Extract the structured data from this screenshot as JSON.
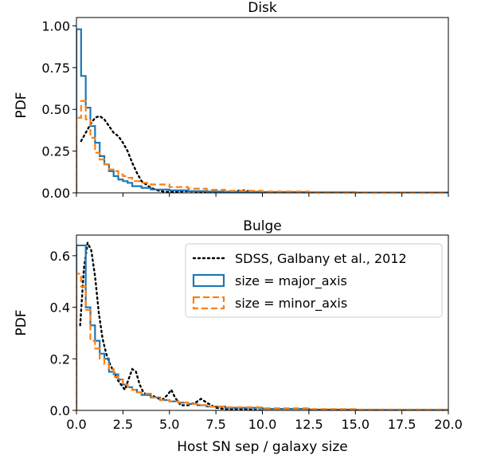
{
  "chart_data": [
    {
      "type": "line",
      "title": "Disk",
      "xlabel": "",
      "ylabel": "PDF",
      "xlim": [
        0,
        20
      ],
      "ylim": [
        0,
        1.05
      ],
      "xticks": [
        0,
        2.5,
        5,
        7.5,
        10,
        12.5,
        15,
        17.5,
        20
      ],
      "xtick_labels": [],
      "yticks": [
        0,
        0.25,
        0.5,
        0.75,
        1.0
      ],
      "ytick_labels": [
        "0.00",
        "0.25",
        "0.50",
        "0.75",
        "1.00"
      ],
      "series": [
        {
          "name": "SDSS, Galbany et al., 2012",
          "style": "dotted",
          "color": "#000000",
          "x": [
            0.25,
            0.5,
            0.75,
            1.0,
            1.25,
            1.5,
            1.75,
            2.0,
            2.25,
            2.5,
            2.75,
            3.0,
            3.25,
            3.5,
            4.0,
            4.5,
            5.0,
            6.0,
            7.0,
            8.0,
            9.0,
            9.5,
            10.0
          ],
          "y": [
            0.31,
            0.36,
            0.41,
            0.45,
            0.46,
            0.44,
            0.4,
            0.36,
            0.34,
            0.3,
            0.25,
            0.18,
            0.12,
            0.07,
            0.03,
            0.01,
            0.005,
            0.01,
            0.005,
            0.005,
            0.015,
            0.005,
            0.0
          ]
        },
        {
          "name": "size = major_axis",
          "style": "step-solid",
          "color": "#1f77b4",
          "edges": [
            0,
            0.25,
            0.5,
            0.75,
            1.0,
            1.25,
            1.5,
            1.75,
            2.0,
            2.25,
            2.5,
            2.75,
            3.0,
            3.5,
            4.0,
            5.0,
            6.0,
            7.0,
            8.0,
            10.0,
            12.5,
            15.0,
            20.0
          ],
          "values": [
            0.98,
            0.7,
            0.51,
            0.4,
            0.3,
            0.22,
            0.17,
            0.13,
            0.1,
            0.08,
            0.07,
            0.06,
            0.04,
            0.03,
            0.02,
            0.015,
            0.01,
            0.008,
            0.006,
            0.004,
            0.003,
            0.002
          ]
        },
        {
          "name": "size = minor_axis",
          "style": "step-dashed",
          "color": "#ff7f0e",
          "edges": [
            0,
            0.25,
            0.5,
            0.75,
            1.0,
            1.25,
            1.5,
            1.75,
            2.0,
            2.25,
            2.5,
            2.75,
            3.0,
            3.5,
            4.0,
            5.0,
            6.0,
            7.0,
            8.0,
            10.0,
            12.5,
            15.0,
            20.0
          ],
          "values": [
            0.45,
            0.55,
            0.44,
            0.33,
            0.24,
            0.2,
            0.17,
            0.14,
            0.13,
            0.11,
            0.1,
            0.09,
            0.07,
            0.06,
            0.05,
            0.035,
            0.025,
            0.018,
            0.012,
            0.008,
            0.005,
            0.003
          ]
        }
      ]
    },
    {
      "type": "line",
      "title": "Bulge",
      "xlabel": "Host SN sep / galaxy size",
      "ylabel": "PDF",
      "xlim": [
        0,
        20
      ],
      "ylim": [
        0,
        0.68
      ],
      "xticks": [
        0,
        2.5,
        5,
        7.5,
        10,
        12.5,
        15,
        17.5,
        20
      ],
      "xtick_labels": [
        "0.0",
        "2.5",
        "5.0",
        "7.5",
        "10.0",
        "12.5",
        "15.0",
        "17.5",
        "20.0"
      ],
      "yticks": [
        0,
        0.2,
        0.4,
        0.6
      ],
      "ytick_labels": [
        "0.0",
        "0.2",
        "0.4",
        "0.6"
      ],
      "legend": "top-right",
      "series": [
        {
          "name": "SDSS, Galbany et al., 2012",
          "style": "dotted",
          "color": "#000000",
          "x": [
            0.2,
            0.4,
            0.6,
            0.8,
            1.0,
            1.2,
            1.4,
            1.6,
            1.8,
            2.0,
            2.2,
            2.4,
            2.6,
            2.8,
            3.0,
            3.2,
            3.4,
            3.6,
            3.8,
            4.0,
            4.3,
            4.6,
            4.9,
            5.1,
            5.3,
            5.6,
            6.0,
            6.4,
            6.7,
            7.0,
            7.5,
            8.0,
            9.0,
            10.0
          ],
          "y": [
            0.33,
            0.55,
            0.65,
            0.62,
            0.52,
            0.38,
            0.28,
            0.22,
            0.18,
            0.15,
            0.12,
            0.1,
            0.08,
            0.12,
            0.16,
            0.15,
            0.1,
            0.07,
            0.06,
            0.06,
            0.05,
            0.04,
            0.06,
            0.08,
            0.05,
            0.02,
            0.02,
            0.03,
            0.045,
            0.03,
            0.01,
            0.005,
            0.005,
            0.0
          ]
        },
        {
          "name": "size = major_axis",
          "style": "step-solid",
          "color": "#1f77b4",
          "edges": [
            0,
            0.25,
            0.5,
            0.75,
            1.0,
            1.25,
            1.5,
            1.75,
            2.0,
            2.25,
            2.5,
            2.75,
            3.0,
            3.25,
            3.5,
            4.0,
            4.5,
            5.0,
            5.5,
            6.0,
            6.5,
            7.0,
            8.0,
            10.0,
            12.5,
            15.0,
            20.0
          ],
          "values": [
            0.64,
            0.64,
            0.4,
            0.33,
            0.27,
            0.22,
            0.2,
            0.15,
            0.14,
            0.12,
            0.1,
            0.09,
            0.08,
            0.07,
            0.06,
            0.05,
            0.04,
            0.035,
            0.03,
            0.025,
            0.02,
            0.015,
            0.01,
            0.006,
            0.003,
            0.002
          ]
        },
        {
          "name": "size = minor_axis",
          "style": "step-dashed",
          "color": "#ff7f0e",
          "edges": [
            0,
            0.25,
            0.5,
            0.75,
            1.0,
            1.25,
            1.5,
            1.75,
            2.0,
            2.25,
            2.5,
            2.75,
            3.0,
            3.25,
            3.5,
            4.0,
            4.5,
            5.0,
            5.5,
            6.0,
            6.5,
            7.0,
            8.0,
            10.0,
            12.5,
            15.0,
            20.0
          ],
          "values": [
            0.53,
            0.48,
            0.39,
            0.27,
            0.24,
            0.2,
            0.18,
            0.16,
            0.13,
            0.12,
            0.1,
            0.09,
            0.08,
            0.07,
            0.065,
            0.05,
            0.04,
            0.035,
            0.03,
            0.025,
            0.02,
            0.015,
            0.012,
            0.008,
            0.005,
            0.003
          ]
        }
      ]
    }
  ]
}
